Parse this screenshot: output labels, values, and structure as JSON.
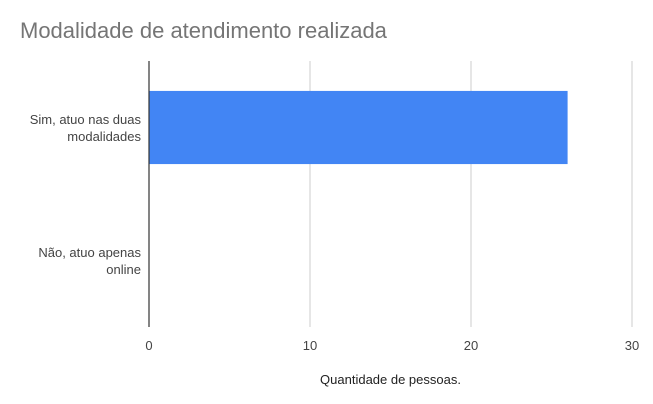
{
  "chart_data": {
    "type": "bar",
    "orientation": "horizontal",
    "title": "Modalidade de atendimento realizada",
    "xlabel": "Quantidade de pessoas.",
    "ylabel": "",
    "categories": [
      [
        "Sim, atuo nas duas",
        "modalidades"
      ],
      [
        "Não, atuo apenas",
        "online"
      ]
    ],
    "values": [
      26,
      0
    ],
    "xlim": [
      0,
      30
    ],
    "xticks": [
      0,
      10,
      20,
      30
    ],
    "grid": true,
    "legend": "none",
    "bar_color": "#4285f4"
  }
}
